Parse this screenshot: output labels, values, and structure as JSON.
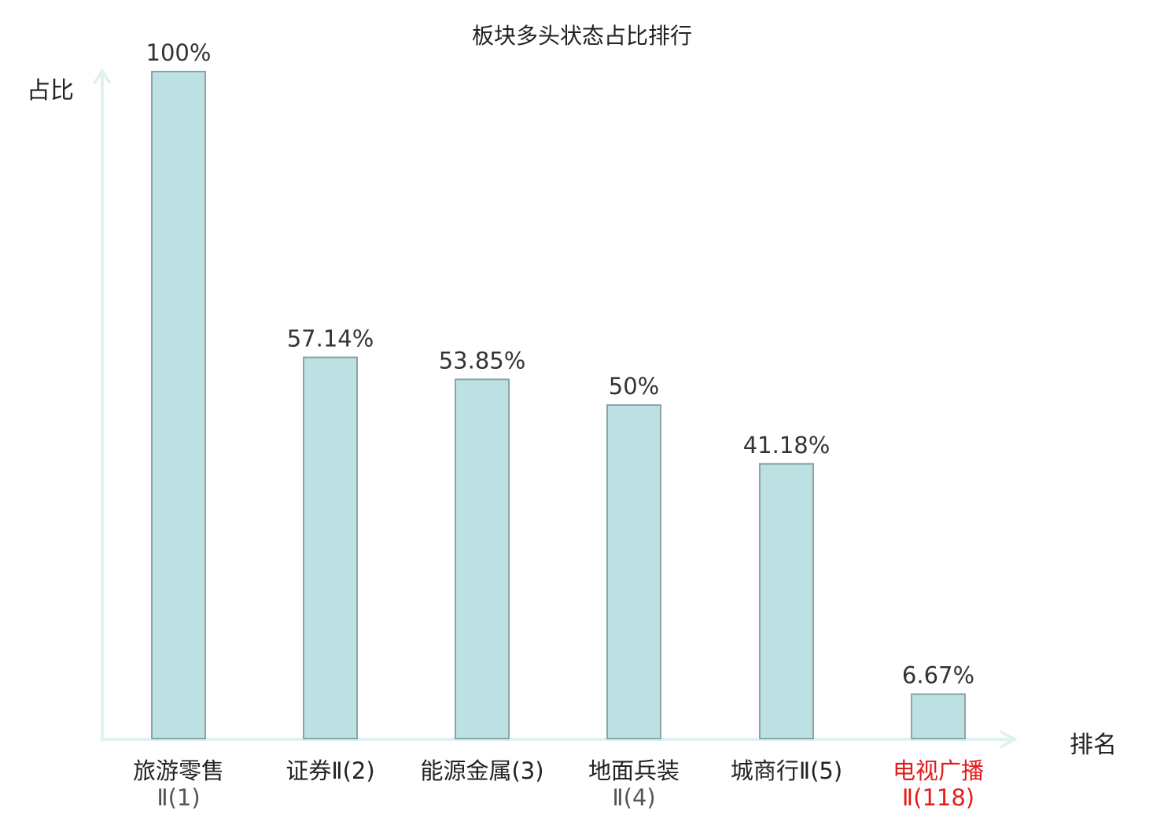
{
  "chart_data": {
    "type": "bar",
    "title": "板块多头状态占比排行",
    "ylabel": "占比",
    "xlabel": "排名",
    "ylim": [
      0,
      100
    ],
    "grid": false,
    "categories": [
      {
        "line1": "旅游零售",
        "line2": "Ⅱ(1)",
        "highlight": false
      },
      {
        "line1": "证券Ⅱ(2)",
        "line2": "",
        "highlight": false
      },
      {
        "line1": "能源金属(3)",
        "line2": "",
        "highlight": false
      },
      {
        "line1": "地面兵装",
        "line2": "Ⅱ(4)",
        "highlight": false
      },
      {
        "line1": "城商行Ⅱ(5)",
        "line2": "",
        "highlight": false
      },
      {
        "line1": "电视广播",
        "line2": "Ⅱ(118)",
        "highlight": true
      }
    ],
    "values": [
      100,
      57.14,
      53.85,
      50,
      41.18,
      6.67
    ],
    "value_labels": [
      "100%",
      "57.14%",
      "53.85%",
      "50%",
      "41.18%",
      "6.67%"
    ],
    "colors": {
      "bar_fill": "#bde0e2",
      "bar_stroke": "#86a6a8",
      "axis": "#e0f2ef",
      "highlight_text": "#e41a1a"
    }
  }
}
